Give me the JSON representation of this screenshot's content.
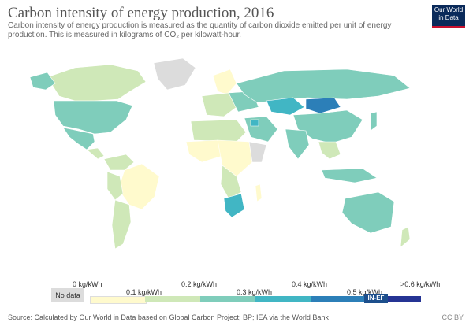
{
  "header": {
    "title": "Carbon intensity of energy production, 2016",
    "subtitle_line1": "Carbon intensity of energy production is measured as the quantity of carbon dioxide emitted per unit of energy",
    "subtitle_line2": "production. This is measured in kilograms of CO₂ per kilowatt-hour.",
    "logo_line1": "Our World",
    "logo_line2": "in Data"
  },
  "legend": {
    "no_data": "No data",
    "labels": [
      "0 kg/kWh",
      "0.1 kg/kWh",
      "0.2 kg/kWh",
      "0.3 kg/kWh",
      "0.4 kg/kWh",
      "0.5 kg/kWh",
      ">0.6 kg/kWh"
    ],
    "colors": [
      "#fffacd",
      "#cfe8b8",
      "#7fcdbb",
      "#41b6c4",
      "#2c7fb8",
      "#253494"
    ]
  },
  "footer": {
    "source": "Source: Calculated by Our World in Data based on Global Carbon Project; BP; IEA via the World Bank",
    "badge": "IN-EF",
    "code": "CC BY"
  },
  "colors": {
    "no_data": "#dcdcdc",
    "ocean": "#ffffff"
  }
}
